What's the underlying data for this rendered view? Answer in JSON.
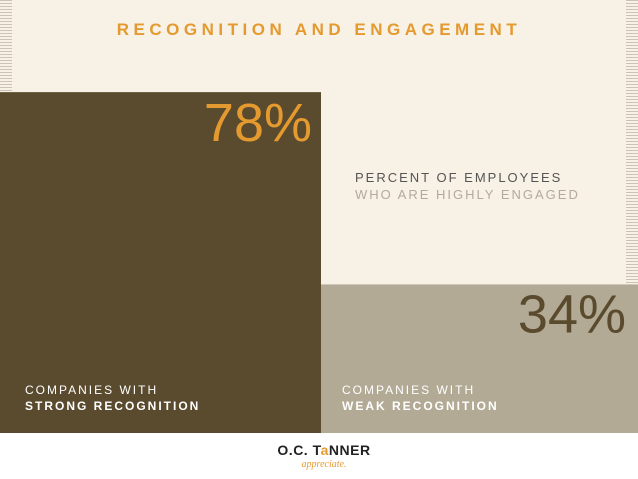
{
  "title": "RECOGNITION AND ENGAGEMENT",
  "legend": {
    "line1": "PERCENT OF EMPLOYEES",
    "line2": "WHO ARE HIGHLY ENGAGED"
  },
  "chart_data": {
    "type": "bar",
    "title": "RECOGNITION AND ENGAGEMENT",
    "ylabel": "PERCENT OF EMPLOYEES WHO ARE HIGHLY ENGAGED",
    "categories": [
      "COMPANIES WITH STRONG RECOGNITION",
      "COMPANIES WITH WEAK RECOGNITION"
    ],
    "values": [
      78,
      34
    ],
    "value_labels": [
      "78%",
      "34%"
    ],
    "ylim": [
      0,
      100
    ],
    "colors": [
      "#5a4a2e",
      "#b3aa96"
    ],
    "label_colors": [
      "#e59a2f",
      "#5a4a2e"
    ]
  },
  "categories_text": [
    {
      "top": "COMPANIES WITH",
      "bottom": "STRONG RECOGNITION"
    },
    {
      "top": "COMPANIES WITH",
      "bottom": "WEAK RECOGNITION"
    }
  ],
  "logo": {
    "main_prefix": "O.C. T",
    "main_accent": "a",
    "main_suffix": "NNER",
    "tagline": "appreciate."
  }
}
